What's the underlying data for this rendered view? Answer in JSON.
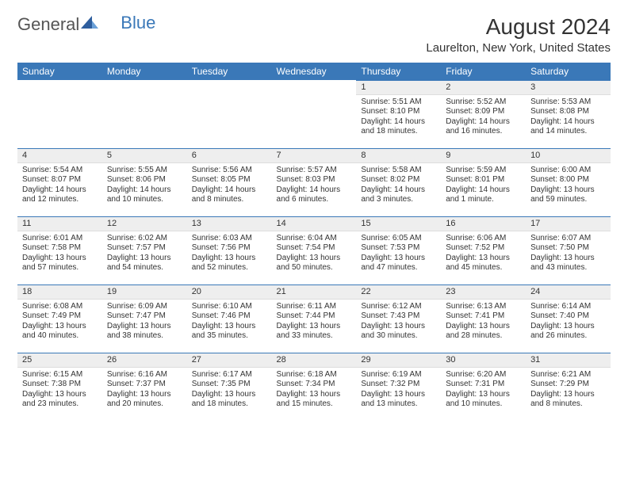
{
  "brand": {
    "text1": "General",
    "text2": "Blue"
  },
  "title": "August 2024",
  "location": "Laurelton, New York, United States",
  "colors": {
    "header_bg": "#3a78b8",
    "header_text": "#ffffff",
    "daynum_bg": "#eeeeee",
    "row_border": "#3a78b8",
    "text": "#333333",
    "background": "#ffffff"
  },
  "fonts": {
    "title_size": 28,
    "location_size": 15,
    "th_size": 12,
    "daynum_size": 11,
    "cell_size": 10
  },
  "days_of_week": [
    "Sunday",
    "Monday",
    "Tuesday",
    "Wednesday",
    "Thursday",
    "Friday",
    "Saturday"
  ],
  "weeks": [
    [
      {
        "n": "",
        "sr": "",
        "ss": "",
        "dl": ""
      },
      {
        "n": "",
        "sr": "",
        "ss": "",
        "dl": ""
      },
      {
        "n": "",
        "sr": "",
        "ss": "",
        "dl": ""
      },
      {
        "n": "",
        "sr": "",
        "ss": "",
        "dl": ""
      },
      {
        "n": "1",
        "sr": "Sunrise: 5:51 AM",
        "ss": "Sunset: 8:10 PM",
        "dl": "Daylight: 14 hours and 18 minutes."
      },
      {
        "n": "2",
        "sr": "Sunrise: 5:52 AM",
        "ss": "Sunset: 8:09 PM",
        "dl": "Daylight: 14 hours and 16 minutes."
      },
      {
        "n": "3",
        "sr": "Sunrise: 5:53 AM",
        "ss": "Sunset: 8:08 PM",
        "dl": "Daylight: 14 hours and 14 minutes."
      }
    ],
    [
      {
        "n": "4",
        "sr": "Sunrise: 5:54 AM",
        "ss": "Sunset: 8:07 PM",
        "dl": "Daylight: 14 hours and 12 minutes."
      },
      {
        "n": "5",
        "sr": "Sunrise: 5:55 AM",
        "ss": "Sunset: 8:06 PM",
        "dl": "Daylight: 14 hours and 10 minutes."
      },
      {
        "n": "6",
        "sr": "Sunrise: 5:56 AM",
        "ss": "Sunset: 8:05 PM",
        "dl": "Daylight: 14 hours and 8 minutes."
      },
      {
        "n": "7",
        "sr": "Sunrise: 5:57 AM",
        "ss": "Sunset: 8:03 PM",
        "dl": "Daylight: 14 hours and 6 minutes."
      },
      {
        "n": "8",
        "sr": "Sunrise: 5:58 AM",
        "ss": "Sunset: 8:02 PM",
        "dl": "Daylight: 14 hours and 3 minutes."
      },
      {
        "n": "9",
        "sr": "Sunrise: 5:59 AM",
        "ss": "Sunset: 8:01 PM",
        "dl": "Daylight: 14 hours and 1 minute."
      },
      {
        "n": "10",
        "sr": "Sunrise: 6:00 AM",
        "ss": "Sunset: 8:00 PM",
        "dl": "Daylight: 13 hours and 59 minutes."
      }
    ],
    [
      {
        "n": "11",
        "sr": "Sunrise: 6:01 AM",
        "ss": "Sunset: 7:58 PM",
        "dl": "Daylight: 13 hours and 57 minutes."
      },
      {
        "n": "12",
        "sr": "Sunrise: 6:02 AM",
        "ss": "Sunset: 7:57 PM",
        "dl": "Daylight: 13 hours and 54 minutes."
      },
      {
        "n": "13",
        "sr": "Sunrise: 6:03 AM",
        "ss": "Sunset: 7:56 PM",
        "dl": "Daylight: 13 hours and 52 minutes."
      },
      {
        "n": "14",
        "sr": "Sunrise: 6:04 AM",
        "ss": "Sunset: 7:54 PM",
        "dl": "Daylight: 13 hours and 50 minutes."
      },
      {
        "n": "15",
        "sr": "Sunrise: 6:05 AM",
        "ss": "Sunset: 7:53 PM",
        "dl": "Daylight: 13 hours and 47 minutes."
      },
      {
        "n": "16",
        "sr": "Sunrise: 6:06 AM",
        "ss": "Sunset: 7:52 PM",
        "dl": "Daylight: 13 hours and 45 minutes."
      },
      {
        "n": "17",
        "sr": "Sunrise: 6:07 AM",
        "ss": "Sunset: 7:50 PM",
        "dl": "Daylight: 13 hours and 43 minutes."
      }
    ],
    [
      {
        "n": "18",
        "sr": "Sunrise: 6:08 AM",
        "ss": "Sunset: 7:49 PM",
        "dl": "Daylight: 13 hours and 40 minutes."
      },
      {
        "n": "19",
        "sr": "Sunrise: 6:09 AM",
        "ss": "Sunset: 7:47 PM",
        "dl": "Daylight: 13 hours and 38 minutes."
      },
      {
        "n": "20",
        "sr": "Sunrise: 6:10 AM",
        "ss": "Sunset: 7:46 PM",
        "dl": "Daylight: 13 hours and 35 minutes."
      },
      {
        "n": "21",
        "sr": "Sunrise: 6:11 AM",
        "ss": "Sunset: 7:44 PM",
        "dl": "Daylight: 13 hours and 33 minutes."
      },
      {
        "n": "22",
        "sr": "Sunrise: 6:12 AM",
        "ss": "Sunset: 7:43 PM",
        "dl": "Daylight: 13 hours and 30 minutes."
      },
      {
        "n": "23",
        "sr": "Sunrise: 6:13 AM",
        "ss": "Sunset: 7:41 PM",
        "dl": "Daylight: 13 hours and 28 minutes."
      },
      {
        "n": "24",
        "sr": "Sunrise: 6:14 AM",
        "ss": "Sunset: 7:40 PM",
        "dl": "Daylight: 13 hours and 26 minutes."
      }
    ],
    [
      {
        "n": "25",
        "sr": "Sunrise: 6:15 AM",
        "ss": "Sunset: 7:38 PM",
        "dl": "Daylight: 13 hours and 23 minutes."
      },
      {
        "n": "26",
        "sr": "Sunrise: 6:16 AM",
        "ss": "Sunset: 7:37 PM",
        "dl": "Daylight: 13 hours and 20 minutes."
      },
      {
        "n": "27",
        "sr": "Sunrise: 6:17 AM",
        "ss": "Sunset: 7:35 PM",
        "dl": "Daylight: 13 hours and 18 minutes."
      },
      {
        "n": "28",
        "sr": "Sunrise: 6:18 AM",
        "ss": "Sunset: 7:34 PM",
        "dl": "Daylight: 13 hours and 15 minutes."
      },
      {
        "n": "29",
        "sr": "Sunrise: 6:19 AM",
        "ss": "Sunset: 7:32 PM",
        "dl": "Daylight: 13 hours and 13 minutes."
      },
      {
        "n": "30",
        "sr": "Sunrise: 6:20 AM",
        "ss": "Sunset: 7:31 PM",
        "dl": "Daylight: 13 hours and 10 minutes."
      },
      {
        "n": "31",
        "sr": "Sunrise: 6:21 AM",
        "ss": "Sunset: 7:29 PM",
        "dl": "Daylight: 13 hours and 8 minutes."
      }
    ]
  ]
}
